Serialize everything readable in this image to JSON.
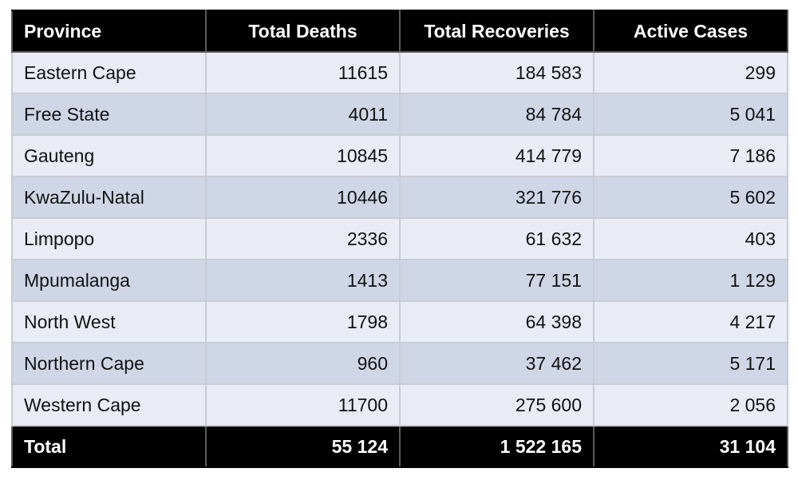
{
  "table": {
    "headers": [
      "Province",
      "Total Deaths",
      "Total Recoveries",
      "Active Cases"
    ],
    "rows": [
      [
        "Eastern Cape",
        "11615",
        "184 583",
        "299"
      ],
      [
        "Free State",
        "4011",
        "84 784",
        "5 041"
      ],
      [
        "Gauteng",
        "10845",
        "414 779",
        "7 186"
      ],
      [
        "KwaZulu-Natal",
        "10446",
        "321 776",
        "5 602"
      ],
      [
        "Limpopo",
        "2336",
        "61 632",
        "403"
      ],
      [
        "Mpumalanga",
        "1413",
        "77 151",
        "1 129"
      ],
      [
        "North West",
        "1798",
        "64 398",
        "4 217"
      ],
      [
        "Northern Cape",
        "960",
        "37 462",
        "5 171"
      ],
      [
        "Western Cape",
        "11700",
        "275 600",
        "2 056"
      ]
    ],
    "total": [
      "Total",
      "55 124",
      "1 522 165",
      "31 104"
    ]
  },
  "colors": {
    "header_bg": "#000000",
    "header_text": "#ffffff",
    "row_light": "#e9ecf5",
    "row_dark": "#cfd6e6"
  }
}
